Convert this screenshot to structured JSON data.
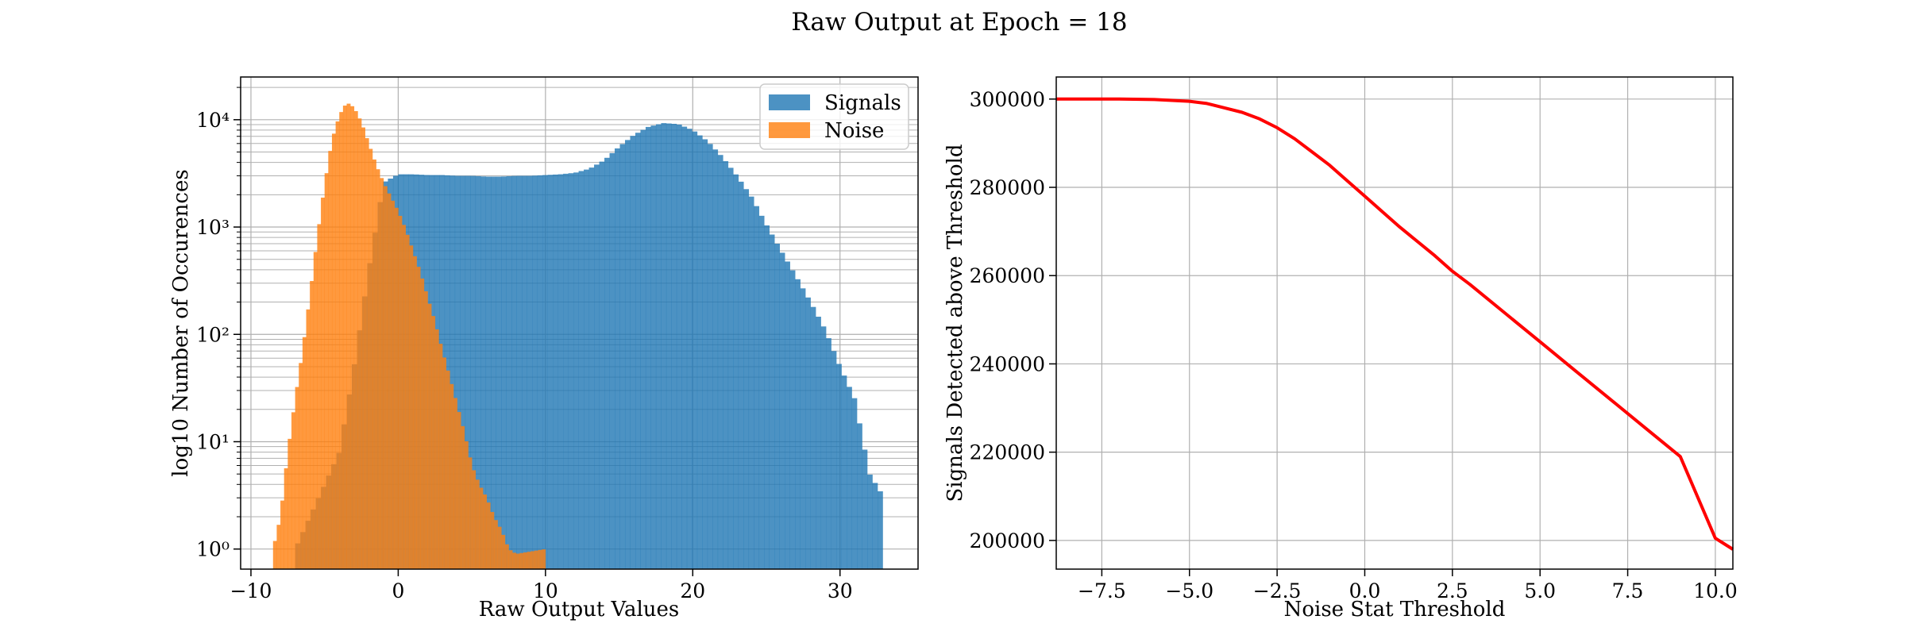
{
  "figure": {
    "suptitle": "Raw Output at Epoch = 18"
  },
  "colors": {
    "signals": "#1f77b4",
    "noise": "#ff7f0e",
    "threshold_line": "#ff0000",
    "grid": "#b0b0b0"
  },
  "chart_data": [
    {
      "type": "histogram",
      "title": "",
      "xlabel": "Raw Output Values",
      "ylabel": "log10 Number of Occurences",
      "xlim": [
        -10.7,
        35.3
      ],
      "ylim": [
        0.65,
        25000
      ],
      "yscale": "log",
      "grid": true,
      "legend": "top-right",
      "xticks": [
        -10,
        0,
        10,
        20,
        30
      ],
      "yticks": [
        {
          "value": 1,
          "label": "10⁰"
        },
        {
          "value": 10,
          "label": "10¹"
        },
        {
          "value": 100,
          "label": "10²"
        },
        {
          "value": 1000,
          "label": "10³"
        },
        {
          "value": 10000,
          "label": "10⁴"
        }
      ],
      "series": [
        {
          "name": "Signals",
          "color": "#1f77b4",
          "alpha": 0.8,
          "points": [
            [
              -7,
              1
            ],
            [
              -6,
              2
            ],
            [
              -5,
              4
            ],
            [
              -4,
              8
            ],
            [
              -3,
              50
            ],
            [
              -2,
              400
            ],
            [
              -1,
              2600
            ],
            [
              0,
              3100
            ],
            [
              1,
              3100
            ],
            [
              2,
              3050
            ],
            [
              3,
              3050
            ],
            [
              4,
              3000
            ],
            [
              5,
              3000
            ],
            [
              6,
              2950
            ],
            [
              7,
              2950
            ],
            [
              8,
              3000
            ],
            [
              9,
              3000
            ],
            [
              10,
              3050
            ],
            [
              11,
              3100
            ],
            [
              12,
              3200
            ],
            [
              13,
              3500
            ],
            [
              14,
              4200
            ],
            [
              15,
              5600
            ],
            [
              16,
              7200
            ],
            [
              17,
              8600
            ],
            [
              18,
              9300
            ],
            [
              19,
              9100
            ],
            [
              20,
              8000
            ],
            [
              21,
              6300
            ],
            [
              22,
              4500
            ],
            [
              23,
              3000
            ],
            [
              24,
              1900
            ],
            [
              25,
              1050
            ],
            [
              26,
              600
            ],
            [
              27,
              350
            ],
            [
              28,
              200
            ],
            [
              29,
              110
            ],
            [
              30,
              50
            ],
            [
              31,
              25
            ],
            [
              32,
              5
            ],
            [
              33,
              3
            ]
          ]
        },
        {
          "name": "Noise",
          "color": "#ff7f0e",
          "alpha": 0.8,
          "points": [
            [
              -8.5,
              1
            ],
            [
              -8,
              2
            ],
            [
              -7.5,
              8
            ],
            [
              -7,
              25
            ],
            [
              -6.5,
              70
            ],
            [
              -6,
              230
            ],
            [
              -5.5,
              800
            ],
            [
              -5,
              2500
            ],
            [
              -4.5,
              6500
            ],
            [
              -4,
              11000
            ],
            [
              -3.5,
              14500
            ],
            [
              -3,
              13000
            ],
            [
              -2.5,
              9500
            ],
            [
              -2,
              6000
            ],
            [
              -1.5,
              3800
            ],
            [
              -1,
              2600
            ],
            [
              -0.5,
              1900
            ],
            [
              0,
              1400
            ],
            [
              0.5,
              950
            ],
            [
              1,
              600
            ],
            [
              1.5,
              380
            ],
            [
              2,
              220
            ],
            [
              2.5,
              130
            ],
            [
              3,
              70
            ],
            [
              3.5,
              40
            ],
            [
              4,
              22
            ],
            [
              4.5,
              12
            ],
            [
              5,
              6
            ],
            [
              5.5,
              4
            ],
            [
              6,
              3
            ],
            [
              6.5,
              2
            ],
            [
              7,
              1.5
            ],
            [
              7.5,
              1
            ],
            [
              8,
              0.9
            ],
            [
              10,
              1
            ]
          ]
        }
      ]
    },
    {
      "type": "line",
      "title": "",
      "xlabel": "Noise Stat Threshold",
      "ylabel": "Signals Detected above Threshold",
      "xlim": [
        -8.8,
        10.5
      ],
      "ylim": [
        193500,
        305000
      ],
      "grid": true,
      "xticks": [
        -7.5,
        -5.0,
        -2.5,
        0.0,
        2.5,
        5.0,
        7.5,
        10.0
      ],
      "xtick_labels": [
        "−7.5",
        "−5.0",
        "−2.5",
        "0.0",
        "2.5",
        "5.0",
        "7.5",
        "10.0"
      ],
      "yticks": [
        200000,
        220000,
        240000,
        260000,
        280000,
        300000
      ],
      "series": [
        {
          "color": "#ff0000",
          "points": [
            [
              -8.8,
              300000
            ],
            [
              -7,
              300000
            ],
            [
              -6,
              299900
            ],
            [
              -5,
              299500
            ],
            [
              -4.5,
              299000
            ],
            [
              -4,
              298000
            ],
            [
              -3.5,
              297000
            ],
            [
              -3,
              295500
            ],
            [
              -2.5,
              293500
            ],
            [
              -2,
              291000
            ],
            [
              -1.5,
              288000
            ],
            [
              -1,
              285000
            ],
            [
              -0.5,
              281500
            ],
            [
              0,
              278000
            ],
            [
              0.5,
              274500
            ],
            [
              1,
              271000
            ],
            [
              2,
              264500
            ],
            [
              2.5,
              261000
            ],
            [
              3,
              258000
            ],
            [
              4,
              251500
            ],
            [
              5,
              245000
            ],
            [
              6,
              238500
            ],
            [
              7,
              232000
            ],
            [
              8,
              225500
            ],
            [
              9,
              219000
            ],
            [
              10,
              200500
            ],
            [
              10.5,
              198000
            ]
          ]
        }
      ]
    }
  ]
}
